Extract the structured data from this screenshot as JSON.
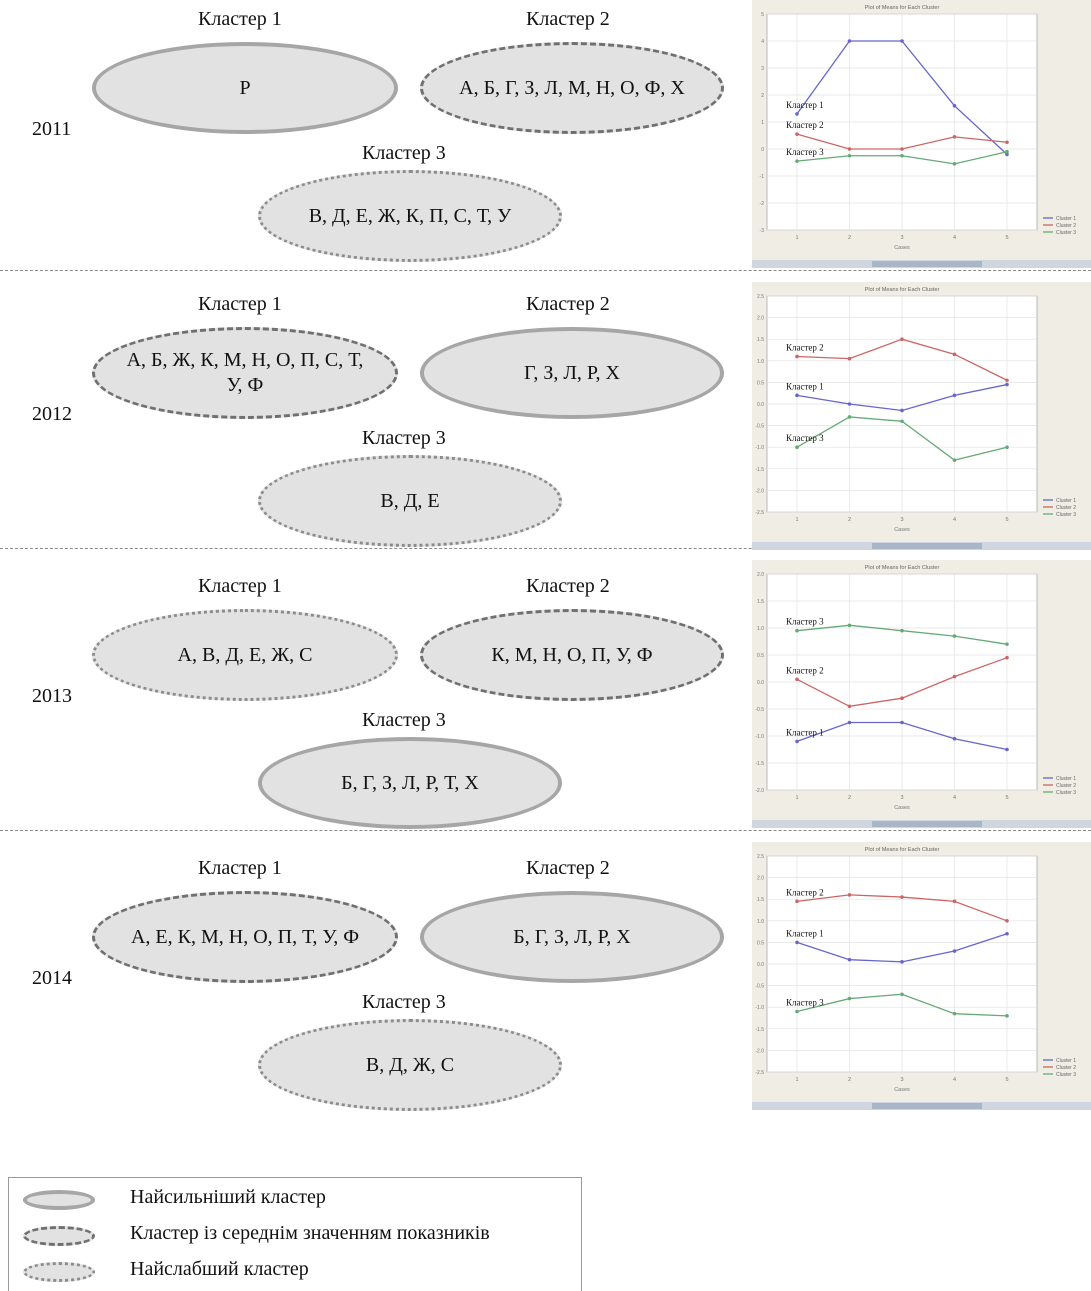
{
  "rows": [
    {
      "year": "2011",
      "clusters": [
        {
          "label": "Кластер 1",
          "members": "Р",
          "strength": "strong"
        },
        {
          "label": "Кластер 2",
          "members": "А, Б, Г, З, Л, М, Н, О, Ф, Х",
          "strength": "medium"
        },
        {
          "label": "Кластер 3",
          "members": "В, Д, Е, Ж, К, П, С, Т, У",
          "strength": "weak"
        }
      ],
      "chart": {
        "type": "line",
        "title": "Plot of Means for Each Cluster",
        "xlabel": "Cases",
        "x": [
          1,
          2,
          3,
          4,
          5
        ],
        "ylim": [
          -3,
          5
        ],
        "yticks": [
          "5",
          "4",
          "3",
          "2",
          "1",
          "0",
          "-1",
          "-2",
          "-3"
        ],
        "series": [
          {
            "name": "Cluster 1",
            "annotation": "Кластер 1",
            "color": "#6666cc",
            "values": [
              1.3,
              4.0,
              4.0,
              1.6,
              -0.2
            ]
          },
          {
            "name": "Cluster 2",
            "annotation": "Кластер 2",
            "color": "#cc6666",
            "values": [
              0.55,
              0.0,
              0.0,
              0.45,
              0.25
            ]
          },
          {
            "name": "Cluster 3",
            "annotation": "Кластер 3",
            "color": "#66aa77",
            "values": [
              -0.45,
              -0.25,
              -0.25,
              -0.55,
              -0.1
            ]
          }
        ]
      }
    },
    {
      "year": "2012",
      "clusters": [
        {
          "label": "Кластер 1",
          "members": "А, Б, Ж, К, М, Н, О, П, С, Т, У, Ф",
          "strength": "medium"
        },
        {
          "label": "Кластер 2",
          "members": "Г, З, Л, Р, Х",
          "strength": "strong"
        },
        {
          "label": "Кластер 3",
          "members": "В, Д, Е",
          "strength": "weak"
        }
      ],
      "chart": {
        "type": "line",
        "title": "Plot of Means for Each Cluster",
        "xlabel": "Cases",
        "x": [
          1,
          2,
          3,
          4,
          5
        ],
        "ylim": [
          -2.5,
          2.5
        ],
        "yticks": [
          "2.5",
          "2.0",
          "1.5",
          "1.0",
          "0.5",
          "0.0",
          "-0.5",
          "-1.0",
          "-1.5",
          "-2.0",
          "-2.5"
        ],
        "series": [
          {
            "name": "Cluster 1",
            "annotation": "Кластер 1",
            "color": "#6666cc",
            "values": [
              0.2,
              0.0,
              -0.15,
              0.2,
              0.45
            ]
          },
          {
            "name": "Cluster 2",
            "annotation": "Кластер 2",
            "color": "#cc6666",
            "values": [
              1.1,
              1.05,
              1.5,
              1.15,
              0.55
            ]
          },
          {
            "name": "Cluster 3",
            "annotation": "Кластер 3",
            "color": "#66aa77",
            "values": [
              -1.0,
              -0.3,
              -0.4,
              -1.3,
              -1.0
            ]
          }
        ]
      }
    },
    {
      "year": "2013",
      "clusters": [
        {
          "label": "Кластер 1",
          "members": "А, В, Д, Е, Ж, С",
          "strength": "weak"
        },
        {
          "label": "Кластер 2",
          "members": "К, М, Н, О, П, У, Ф",
          "strength": "medium"
        },
        {
          "label": "Кластер 3",
          "members": "Б, Г, З, Л, Р, Т, Х",
          "strength": "strong"
        }
      ],
      "chart": {
        "type": "line",
        "title": "Plot of Means for Each Cluster",
        "xlabel": "Cases",
        "x": [
          1,
          2,
          3,
          4,
          5
        ],
        "ylim": [
          -2,
          2
        ],
        "yticks": [
          "2.0",
          "1.5",
          "1.0",
          "0.5",
          "0.0",
          "-0.5",
          "-1.0",
          "-1.5",
          "-2.0"
        ],
        "series": [
          {
            "name": "Cluster 1",
            "annotation": "Кластер 1",
            "color": "#6666cc",
            "values": [
              -1.1,
              -0.75,
              -0.75,
              -1.05,
              -1.25
            ]
          },
          {
            "name": "Cluster 2",
            "annotation": "Кластер 2",
            "color": "#cc6666",
            "values": [
              0.05,
              -0.45,
              -0.3,
              0.1,
              0.45
            ]
          },
          {
            "name": "Cluster 3",
            "annotation": "Кластер 3",
            "color": "#66aa77",
            "values": [
              0.95,
              1.05,
              0.95,
              0.85,
              0.7
            ]
          }
        ]
      }
    },
    {
      "year": "2014",
      "clusters": [
        {
          "label": "Кластер 1",
          "members": "А, Е, К, М, Н, О, П, Т, У, Ф",
          "strength": "medium"
        },
        {
          "label": "Кластер 2",
          "members": "Б, Г, З, Л, Р, Х",
          "strength": "strong"
        },
        {
          "label": "Кластер 3",
          "members": "В, Д, Ж, С",
          "strength": "weak"
        }
      ],
      "chart": {
        "type": "line",
        "title": "Plot of Means for Each Cluster",
        "xlabel": "Cases",
        "x": [
          1,
          2,
          3,
          4,
          5
        ],
        "ylim": [
          -2.5,
          2.5
        ],
        "yticks": [
          "2.5",
          "2.0",
          "1.5",
          "1.0",
          "0.5",
          "0.0",
          "-0.5",
          "-1.0",
          "-1.5",
          "-2.0",
          "-2.5"
        ],
        "series": [
          {
            "name": "Cluster 1",
            "annotation": "Кластер 1",
            "color": "#6666cc",
            "values": [
              0.5,
              0.1,
              0.05,
              0.3,
              0.7
            ]
          },
          {
            "name": "Cluster 2",
            "annotation": "Кластер 2",
            "color": "#cc6666",
            "values": [
              1.45,
              1.6,
              1.55,
              1.45,
              1.0
            ]
          },
          {
            "name": "Cluster 3",
            "annotation": "Кластер 3",
            "color": "#66aa77",
            "values": [
              -1.1,
              -0.8,
              -0.7,
              -1.15,
              -1.2
            ]
          }
        ]
      }
    }
  ],
  "legend": [
    {
      "strength": "strong",
      "text": "Найсильніший кластер"
    },
    {
      "strength": "medium",
      "text": "Кластер із середнім значенням показників"
    },
    {
      "strength": "weak",
      "text": "Найслабший кластер"
    }
  ]
}
